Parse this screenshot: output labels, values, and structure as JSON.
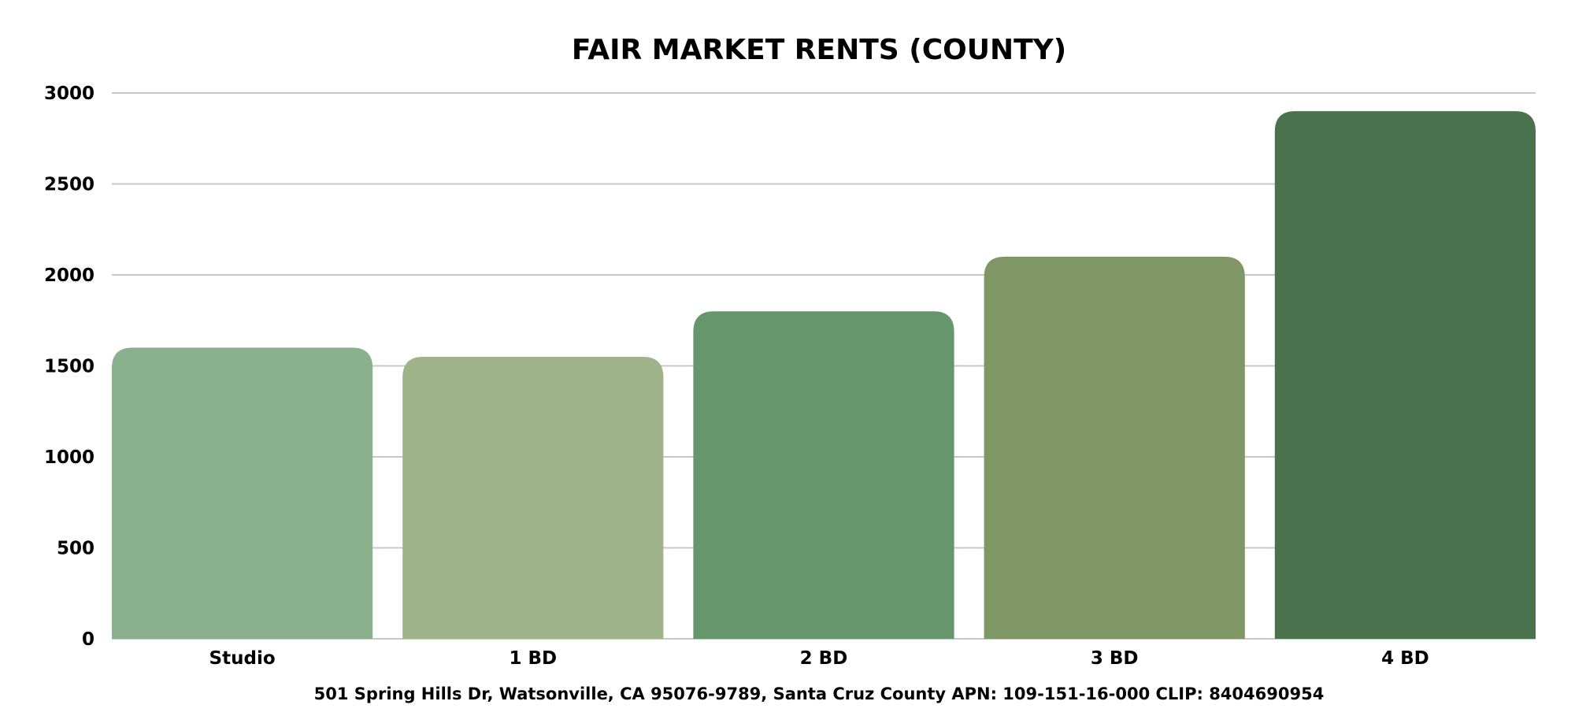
{
  "chart_data": {
    "type": "bar",
    "title": "FAIR MARKET RENTS (COUNTY)",
    "xlabel": "",
    "ylabel": "",
    "categories": [
      "Studio",
      "1 BD",
      "2 BD",
      "3 BD",
      "4 BD"
    ],
    "values": [
      1600,
      1550,
      1800,
      2100,
      2900
    ],
    "colors": [
      "#8bb08e",
      "#9fb38b",
      "#66966b",
      "#7f9765",
      "#4a724d"
    ],
    "ylim": [
      0,
      3000
    ],
    "yticks": [
      0,
      500,
      1000,
      1500,
      2000,
      2500,
      3000
    ],
    "grid": true,
    "legend": "none"
  },
  "footer": {
    "note": "501 Spring Hills Dr, Watsonville, CA 95076-9789, Santa Cruz County APN: 109-151-16-000 CLIP: 8404690954"
  }
}
